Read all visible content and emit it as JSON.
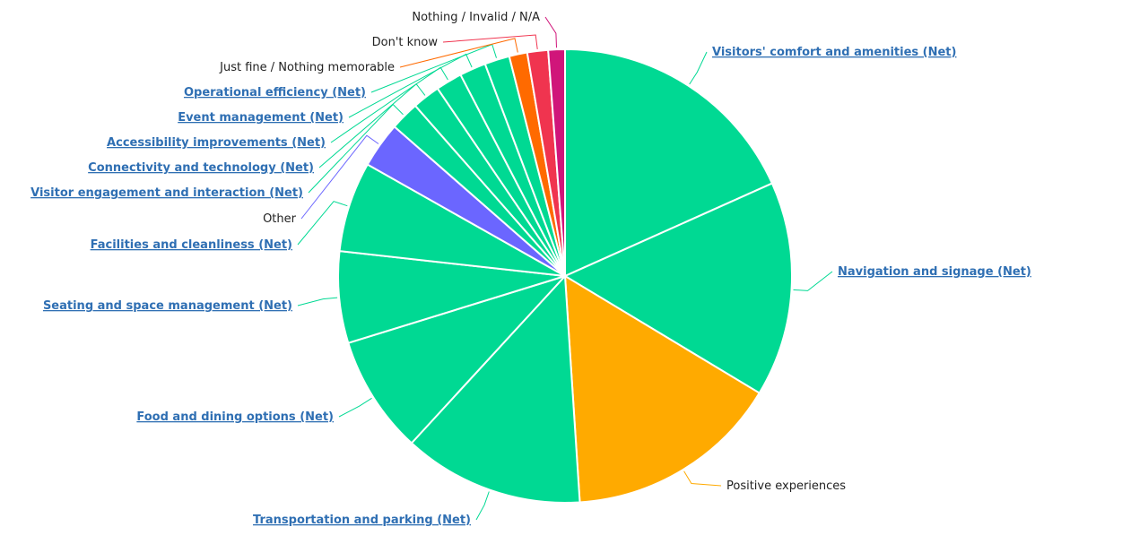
{
  "chart_data": {
    "type": "pie",
    "title": "",
    "start_angle_deg": 0,
    "slices": [
      {
        "label": "Visitors' comfort and amenities (Net)",
        "value": 18.5,
        "color": "#00d993",
        "link": true
      },
      {
        "label": "Navigation and signage (Net)",
        "value": 15.5,
        "color": "#00d993",
        "link": true
      },
      {
        "label": "Positive experiences",
        "value": 15.5,
        "color": "#ffaa00",
        "link": false
      },
      {
        "label": "Transportation and parking (Net)",
        "value": 13.0,
        "color": "#00d993",
        "link": true
      },
      {
        "label": "Food and dining options (Net)",
        "value": 8.5,
        "color": "#00d993",
        "link": true
      },
      {
        "label": "Seating and space management (Net)",
        "value": 6.6,
        "color": "#00d993",
        "link": true
      },
      {
        "label": "Facilities and cleanliness (Net)",
        "value": 6.5,
        "color": "#00d993",
        "link": true
      },
      {
        "label": "Other",
        "value": 3.3,
        "color": "#6b66ff",
        "link": false
      },
      {
        "label": "Visitor engagement and interaction (Net)",
        "value": 2.1,
        "color": "#00d993",
        "link": true
      },
      {
        "label": "Connectivity and technology (Net)",
        "value": 2.0,
        "color": "#00d993",
        "link": true
      },
      {
        "label": "Accessibility improvements (Net)",
        "value": 1.9,
        "color": "#00d993",
        "link": true
      },
      {
        "label": "Event management (Net)",
        "value": 1.9,
        "color": "#00d993",
        "link": true
      },
      {
        "label": "Operational efficiency (Net)",
        "value": 1.8,
        "color": "#00d993",
        "link": true
      },
      {
        "label": "Just fine / Nothing memorable",
        "value": 1.3,
        "color": "#ff6a00",
        "link": false
      },
      {
        "label": "Don't know",
        "value": 1.5,
        "color": "#f0344f",
        "link": false
      },
      {
        "label": "Nothing / Invalid / N/A",
        "value": 1.2,
        "color": "#d0157a",
        "link": false
      }
    ]
  }
}
